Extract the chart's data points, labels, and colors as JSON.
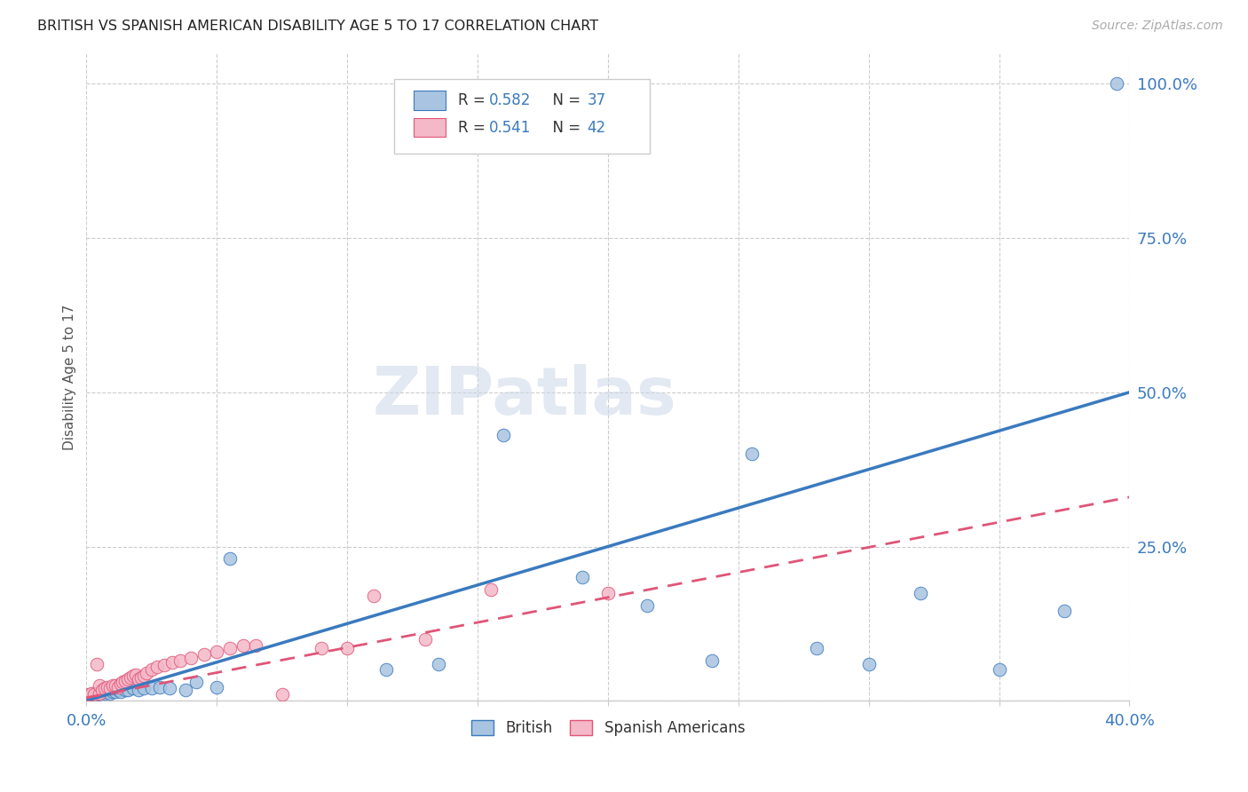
{
  "title": "BRITISH VS SPANISH AMERICAN DISABILITY AGE 5 TO 17 CORRELATION CHART",
  "source": "Source: ZipAtlas.com",
  "ylabel": "Disability Age 5 to 17",
  "xlim": [
    0.0,
    0.4
  ],
  "ylim": [
    0.0,
    1.05
  ],
  "xticks": [
    0.0,
    0.05,
    0.1,
    0.15,
    0.2,
    0.25,
    0.3,
    0.35,
    0.4
  ],
  "xtick_labels": [
    "0.0%",
    "",
    "",
    "",
    "",
    "",
    "",
    "",
    "40.0%"
  ],
  "yticks": [
    0.0,
    0.25,
    0.5,
    0.75,
    1.0
  ],
  "ytick_labels": [
    "",
    "25.0%",
    "50.0%",
    "75.0%",
    "100.0%"
  ],
  "british_R": 0.582,
  "british_N": 37,
  "spanish_R": 0.541,
  "spanish_N": 42,
  "british_color": "#a8c4e0",
  "british_line_color": "#3a7abf",
  "spanish_color": "#f4b8c8",
  "spanish_line_color": "#e05577",
  "legend_text_color": "#3a7abf",
  "watermark": "ZIPatlas",
  "british_x": [
    0.002,
    0.003,
    0.004,
    0.005,
    0.006,
    0.007,
    0.008,
    0.009,
    0.01,
    0.011,
    0.012,
    0.013,
    0.015,
    0.016,
    0.018,
    0.02,
    0.022,
    0.025,
    0.028,
    0.032,
    0.038,
    0.042,
    0.05,
    0.055,
    0.115,
    0.135,
    0.16,
    0.19,
    0.215,
    0.24,
    0.255,
    0.28,
    0.3,
    0.32,
    0.35,
    0.375,
    0.395
  ],
  "british_y": [
    0.01,
    0.012,
    0.01,
    0.012,
    0.014,
    0.012,
    0.015,
    0.012,
    0.015,
    0.015,
    0.018,
    0.015,
    0.018,
    0.018,
    0.02,
    0.018,
    0.02,
    0.02,
    0.022,
    0.02,
    0.018,
    0.03,
    0.022,
    0.23,
    0.05,
    0.06,
    0.43,
    0.2,
    0.155,
    0.065,
    0.4,
    0.085,
    0.06,
    0.175,
    0.05,
    0.145,
    1.0
  ],
  "spanish_x": [
    0.001,
    0.002,
    0.003,
    0.004,
    0.005,
    0.005,
    0.006,
    0.007,
    0.008,
    0.009,
    0.01,
    0.011,
    0.012,
    0.013,
    0.014,
    0.015,
    0.016,
    0.017,
    0.018,
    0.019,
    0.02,
    0.021,
    0.022,
    0.023,
    0.025,
    0.027,
    0.03,
    0.033,
    0.036,
    0.04,
    0.045,
    0.05,
    0.055,
    0.06,
    0.065,
    0.075,
    0.09,
    0.1,
    0.11,
    0.13,
    0.155,
    0.2
  ],
  "spanish_y": [
    0.01,
    0.012,
    0.01,
    0.06,
    0.012,
    0.025,
    0.018,
    0.02,
    0.022,
    0.02,
    0.025,
    0.025,
    0.022,
    0.028,
    0.03,
    0.032,
    0.035,
    0.038,
    0.04,
    0.042,
    0.035,
    0.038,
    0.04,
    0.045,
    0.05,
    0.055,
    0.058,
    0.062,
    0.065,
    0.07,
    0.075,
    0.08,
    0.085,
    0.09,
    0.09,
    0.01,
    0.085,
    0.085,
    0.17,
    0.1,
    0.18,
    0.175
  ],
  "british_line_x": [
    0.0,
    0.4
  ],
  "british_line_y": [
    0.0,
    0.5
  ],
  "spanish_line_x": [
    0.0,
    0.4
  ],
  "spanish_line_y": [
    0.005,
    0.33
  ]
}
